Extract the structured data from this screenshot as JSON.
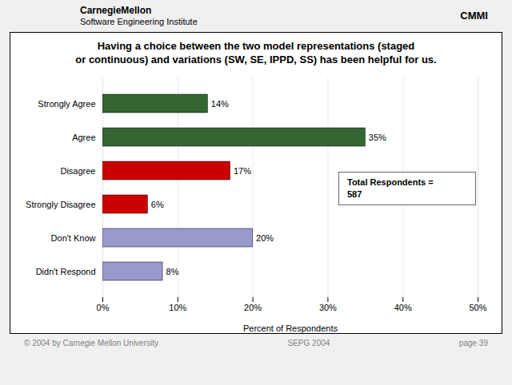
{
  "chart_data": {
    "type": "bar",
    "orientation": "horizontal",
    "title": "Having a choice between the two model representations (staged\nor continuous) and variations (SW, SE, IPPD, SS) has been helpful for us.",
    "categories": [
      "Didn't Respond",
      "Don't Know",
      "Strongly Disagree",
      "Disagree",
      "Agree",
      "Strongly Agree"
    ],
    "values": [
      8,
      20,
      6,
      17,
      35,
      14
    ],
    "value_labels": [
      "8%",
      "20%",
      "6%",
      "17%",
      "35%",
      "14%"
    ],
    "data_labels": true,
    "colors": [
      "#9999cc",
      "#9999cc",
      "#cc0000",
      "#cc0000",
      "#336633",
      "#336633"
    ],
    "xlabel": "Percent of Respondents",
    "xlim": [
      0,
      50
    ],
    "xticks": [
      {
        "value": 0,
        "label": "0%"
      },
      {
        "value": 10,
        "label": "10%"
      },
      {
        "value": 20,
        "label": "20%"
      },
      {
        "value": 30,
        "label": "30%"
      },
      {
        "value": 40,
        "label": "40%"
      },
      {
        "value": 50,
        "label": "50%"
      }
    ],
    "grid": true,
    "annotations": [
      "CarnegieMellon",
      "Software Engineering Institute",
      "CMMI",
      "Total Respondents =",
      "587",
      "© 2004 by Carnegie Mellon University",
      "SEPG 2004",
      "page 39"
    ]
  }
}
